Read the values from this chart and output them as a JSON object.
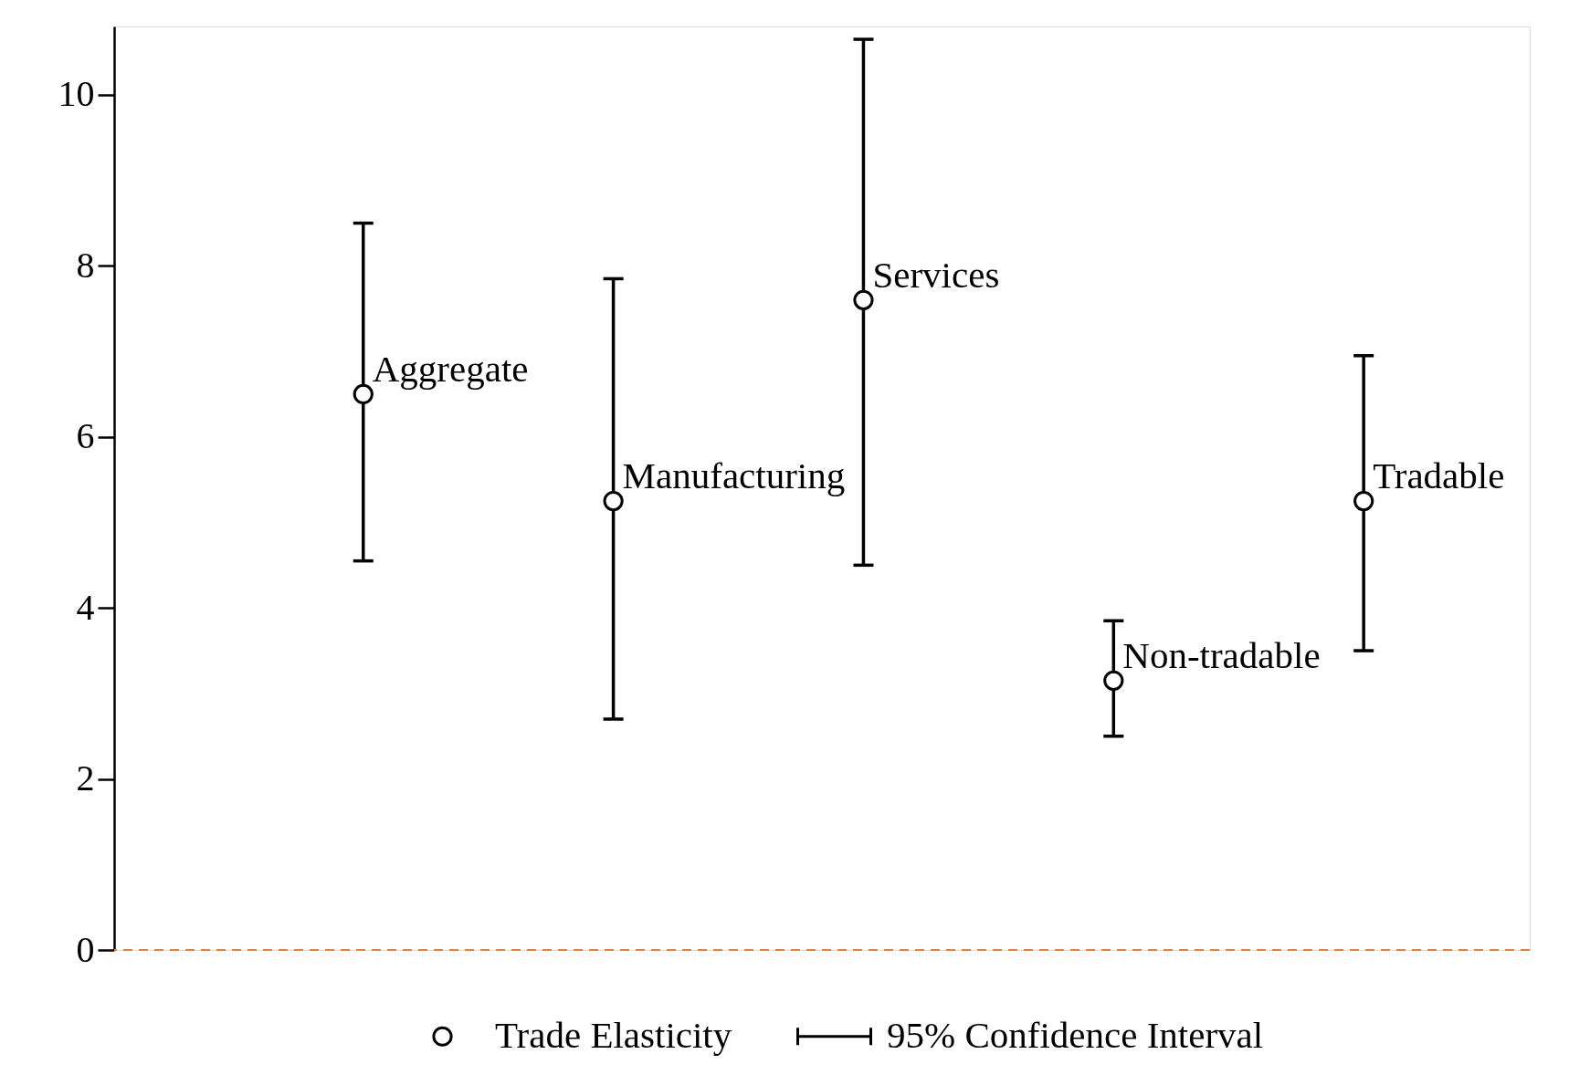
{
  "chart_data": {
    "type": "scatter",
    "categories": [
      null,
      null,
      null,
      null,
      null
    ],
    "series": [
      {
        "name": "Trade Elasticity",
        "color": "#000000",
        "values": [
          6.5,
          5.25,
          7.6,
          3.15,
          5.25
        ],
        "errors": [
          [
            4.55,
            8.5
          ],
          [
            2.7,
            7.85
          ],
          [
            4.5,
            10.65
          ],
          [
            2.5,
            3.85
          ],
          [
            3.5,
            6.95
          ]
        ],
        "value_labels": [
          "Aggregate",
          "Manufacturing",
          "Services",
          "Non-tradable",
          "Tradable"
        ]
      }
    ],
    "ylim": [
      0,
      10.8
    ],
    "yticks": [
      0,
      2,
      4,
      6,
      8,
      10
    ],
    "ref_lines": [
      {
        "axis": "y",
        "value": 0,
        "color": "#ed7d31",
        "line_style": "dashed"
      }
    ],
    "annotations": [
      "95% Confidence Interval"
    ],
    "legend": "bottom",
    "marker": "circle",
    "grid": false,
    "tick_labels": "y"
  }
}
